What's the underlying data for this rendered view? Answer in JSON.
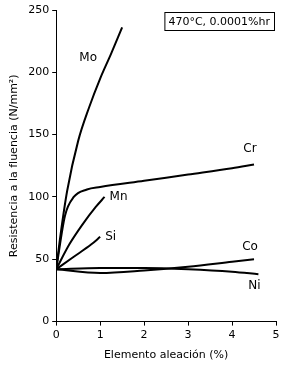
{
  "chart_data": {
    "type": "line",
    "annotation": "470°C, 0.0001%hr",
    "xlabel": "Elemento aleación (%)",
    "ylabel": "Resistencia a la fluencia (N/mm²)",
    "xlim": [
      0,
      5
    ],
    "xticks": [
      0,
      1,
      2,
      3,
      4,
      5
    ],
    "ylim": [
      0,
      250
    ],
    "yticks": [
      0,
      50,
      100,
      150,
      200,
      250
    ],
    "grid": false,
    "series": [
      {
        "name": "Mo",
        "color": "#000000",
        "x": [
          0,
          0.1,
          0.25,
          0.5,
          0.75,
          1.0,
          1.25,
          1.5
        ],
        "values": [
          42,
          70,
          105,
          145,
          172,
          195,
          215,
          236
        ]
      },
      {
        "name": "Cr",
        "color": "#000000",
        "x": [
          0,
          0.2,
          0.4,
          0.7,
          1.0,
          2.0,
          3.0,
          4.0,
          4.5
        ],
        "values": [
          42,
          85,
          100,
          106,
          108,
          113,
          118,
          123,
          126
        ]
      },
      {
        "name": "Mn",
        "color": "#000000",
        "x": [
          0,
          0.3,
          0.6,
          0.9,
          1.1
        ],
        "values": [
          42,
          62,
          78,
          92,
          100
        ]
      },
      {
        "name": "Si",
        "color": "#000000",
        "x": [
          0,
          0.4,
          0.8,
          1.0
        ],
        "values": [
          42,
          52,
          62,
          68
        ]
      },
      {
        "name": "Co",
        "color": "#000000",
        "x": [
          0,
          1.0,
          2.0,
          3.0,
          4.0,
          4.5
        ],
        "values": [
          42,
          39,
          41,
          44,
          48,
          50
        ]
      },
      {
        "name": "Ni",
        "color": "#000000",
        "x": [
          0,
          1.0,
          2.0,
          3.0,
          4.0,
          4.6
        ],
        "values": [
          42,
          43,
          43,
          42,
          40,
          38
        ]
      }
    ]
  }
}
